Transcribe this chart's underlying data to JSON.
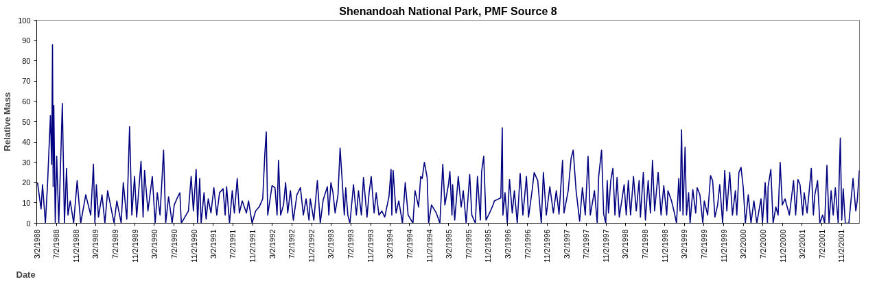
{
  "chart_data": {
    "type": "line",
    "title": "Shenandoah National Park, PMF Source 8",
    "xlabel": "Date",
    "ylabel": "Relative Mass",
    "color": "#000080",
    "x": [
      "1988-03-07",
      "1988-03-29",
      "1988-04-07",
      "1988-04-25",
      "1988-05-08",
      "1988-05-26",
      "1988-06-03",
      "1988-06-08",
      "1988-06-12",
      "1988-06-16",
      "1988-06-25",
      "1988-07-04",
      "1988-07-17",
      "1988-08-08",
      "1988-08-21",
      "1988-09-03",
      "1988-09-12",
      "1988-09-26",
      "1988-10-17",
      "1988-11-08",
      "1988-11-30",
      "1988-12-31",
      "1989-01-31",
      "1989-02-17",
      "1989-02-26",
      "1989-03-07",
      "1989-03-20",
      "1989-04-11",
      "1989-04-29",
      "1989-05-16",
      "1989-06-25",
      "1989-07-12",
      "1989-08-08",
      "1989-08-21",
      "1989-09-12",
      "1989-09-29",
      "1989-10-13",
      "1989-10-30",
      "1989-11-12",
      "1989-12-09",
      "1989-12-22",
      "1989-12-31",
      "1990-01-21",
      "1990-02-17",
      "1990-03-07",
      "1990-03-20",
      "1990-04-06",
      "1990-04-28",
      "1990-05-11",
      "1990-05-29",
      "1990-06-20",
      "1990-07-03",
      "1990-07-25",
      "1990-08-07",
      "1990-08-16",
      "1990-09-07",
      "1990-09-29",
      "1990-10-16",
      "1990-10-30",
      "1990-11-16",
      "1990-11-25",
      "1990-12-08",
      "1990-12-17",
      "1991-01-04",
      "1991-01-17",
      "1991-01-30",
      "1991-02-16",
      "1991-03-06",
      "1991-03-24",
      "1991-04-10",
      "1991-05-02",
      "1991-05-15",
      "1991-05-24",
      "1991-06-11",
      "1991-06-28",
      "1991-07-11",
      "1991-07-29",
      "1991-08-11",
      "1991-08-29",
      "1991-09-24",
      "1991-10-07",
      "1991-10-29",
      "1991-11-20",
      "1991-12-12",
      "1992-01-03",
      "1992-01-16",
      "1992-01-25",
      "1992-02-03",
      "1992-03-01",
      "1992-03-19",
      "1992-04-01",
      "1992-04-10",
      "1992-04-23",
      "1992-05-11",
      "1992-05-24",
      "1992-06-06",
      "1992-06-23",
      "1992-07-11",
      "1992-08-02",
      "1992-08-24",
      "1992-09-11",
      "1992-09-28",
      "1992-10-16",
      "1992-10-24",
      "1992-11-15",
      "1992-12-07",
      "1992-12-25",
      "1993-01-12",
      "1993-02-07",
      "1993-02-16",
      "1993-03-01",
      "1993-03-14",
      "1993-03-27",
      "1993-04-14",
      "1993-04-27",
      "1993-05-10",
      "1993-05-23",
      "1993-06-01",
      "1993-06-14",
      "1993-06-27",
      "1993-07-19",
      "1993-08-06",
      "1993-08-19",
      "1993-09-06",
      "1993-09-19",
      "1993-10-11",
      "1993-10-24",
      "1993-11-06",
      "1993-11-24",
      "1993-12-07",
      "1993-12-24",
      "1994-01-11",
      "1994-01-29",
      "1994-02-24",
      "1994-03-09",
      "1994-03-14",
      "1994-03-22",
      "1994-04-09",
      "1994-04-26",
      "1994-05-19",
      "1994-06-05",
      "1994-06-23",
      "1994-07-23",
      "1994-08-05",
      "1994-08-27",
      "1994-09-09",
      "1994-09-18",
      "1994-10-02",
      "1994-10-19",
      "1994-10-28",
      "1994-11-15",
      "1994-12-15",
      "1995-01-06",
      "1995-01-24",
      "1995-02-06",
      "1995-02-28",
      "1995-03-09",
      "1995-03-22",
      "1995-03-26",
      "1995-04-08",
      "1995-04-30",
      "1995-05-18",
      "1995-05-31",
      "1995-06-18",
      "1995-07-10",
      "1995-07-23",
      "1995-08-14",
      "1995-08-27",
      "1995-09-14",
      "1995-09-22",
      "1995-10-05",
      "1995-10-19",
      "1995-11-10",
      "1995-12-02",
      "1995-12-10",
      "1996-01-19",
      "1996-01-28",
      "1996-02-01",
      "1996-02-14",
      "1996-02-28",
      "1996-03-13",
      "1996-03-30",
      "1996-04-12",
      "1996-04-30",
      "1996-05-18",
      "1996-06-04",
      "1996-06-26",
      "1996-07-09",
      "1996-07-31",
      "1996-08-13",
      "1996-09-04",
      "1996-09-26",
      "1996-10-09",
      "1996-10-27",
      "1996-11-18",
      "1996-12-10",
      "1996-12-28",
      "1997-01-14",
      "1997-02-05",
      "1997-02-14",
      "1997-03-12",
      "1997-03-30",
      "1997-04-12",
      "1997-04-30",
      "1997-05-22",
      "1997-06-08",
      "1997-06-26",
      "1997-07-13",
      "1997-07-27",
      "1997-08-22",
      "1997-09-08",
      "1997-09-17",
      "1997-10-05",
      "1997-10-18",
      "1997-10-31",
      "1997-11-09",
      "1997-11-17",
      "1997-12-01",
      "1997-12-14",
      "1997-12-27",
      "1998-01-09",
      "1998-01-23",
      "1998-02-22",
      "1998-03-07",
      "1998-03-20",
      "1998-04-03",
      "1998-04-21",
      "1998-05-08",
      "1998-05-26",
      "1998-06-03",
      "1998-06-21",
      "1998-07-04",
      "1998-07-21",
      "1998-08-04",
      "1998-08-17",
      "1998-08-30",
      "1998-09-21",
      "1998-10-09",
      "1998-10-26",
      "1998-11-13",
      "1998-11-21",
      "1998-12-13",
      "1998-12-31",
      "1999-01-13",
      "1999-01-27",
      "1999-02-04",
      "1999-02-13",
      "1999-02-22",
      "1999-03-07",
      "1999-03-16",
      "1999-03-29",
      "1999-04-07",
      "1999-04-24",
      "1999-05-12",
      "1999-05-21",
      "1999-06-07",
      "1999-06-25",
      "1999-07-04",
      "1999-07-25",
      "1999-08-12",
      "1999-08-25",
      "1999-09-08",
      "1999-09-25",
      "1999-10-08",
      "1999-10-26",
      "1999-11-08",
      "1999-11-21",
      "1999-12-09",
      "1999-12-26",
      "2000-01-13",
      "2000-01-22",
      "2000-02-04",
      "2000-02-17",
      "2000-03-02",
      "2000-03-15",
      "2000-04-02",
      "2000-04-19",
      "2000-05-07",
      "2000-05-25",
      "2000-06-20",
      "2000-06-29",
      "2000-07-16",
      "2000-07-30",
      "2000-08-03",
      "2000-08-20",
      "2000-09-03",
      "2000-09-20",
      "2000-10-04",
      "2000-10-17",
      "2000-10-30",
      "2000-11-16",
      "2000-12-13",
      "2001-01-08",
      "2001-01-21",
      "2001-02-04",
      "2001-02-17",
      "2001-03-06",
      "2001-03-15",
      "2001-04-02",
      "2001-04-28",
      "2001-05-11",
      "2001-05-20",
      "2001-06-06",
      "2001-06-20",
      "2001-07-07",
      "2001-07-20",
      "2001-08-03",
      "2001-08-16",
      "2001-08-29",
      "2001-09-11",
      "2001-09-24",
      "2001-10-12",
      "2001-10-16",
      "2001-10-25",
      "2001-11-03",
      "2001-11-12",
      "2001-11-25",
      "2001-12-17",
      "2001-12-30",
      "2002-01-12",
      "2002-01-29",
      "2002-02-07",
      "2002-02-20"
    ],
    "values": [
      20,
      7,
      19,
      0,
      19,
      53,
      29,
      88,
      18,
      58,
      0,
      33,
      0,
      59,
      0,
      27,
      4,
      11,
      0,
      21,
      0,
      14,
      4,
      29,
      0,
      19,
      3,
      14,
      0,
      16,
      0,
      11,
      0,
      20,
      2,
      47.5,
      4,
      23,
      3,
      30.5,
      3,
      26,
      6,
      23,
      0,
      15,
      4,
      36,
      0,
      13,
      0,
      9,
      13,
      15,
      0,
      3,
      6,
      23,
      6,
      26.5,
      0,
      22,
      0,
      15,
      2,
      12,
      5,
      17.5,
      4,
      15,
      17,
      4,
      18,
      0,
      16,
      5,
      22,
      5,
      11,
      5,
      11,
      0,
      6,
      8,
      12,
      34,
      45,
      4,
      18.5,
      17.5,
      4,
      31,
      4,
      9,
      20,
      5,
      16,
      1.5,
      14,
      17.5,
      4,
      12,
      1.5,
      12,
      1.5,
      21,
      0,
      11.5,
      18,
      4,
      20,
      15,
      5,
      14,
      37,
      21,
      4,
      17.5,
      4,
      0,
      19,
      4,
      16,
      4,
      22.5,
      3,
      15,
      23,
      5,
      15,
      4,
      6,
      3,
      13,
      26.5,
      4,
      26,
      5,
      11,
      0,
      20,
      4,
      0,
      16,
      8,
      23,
      22,
      30,
      22.5,
      0,
      9,
      5,
      0,
      29,
      9,
      19,
      25.5,
      4,
      19,
      1.5,
      23,
      8,
      16,
      0,
      24,
      4,
      0,
      23,
      1.5,
      25.5,
      33,
      1.5,
      5,
      9,
      11,
      12.5,
      47,
      4,
      15,
      0,
      21.5,
      5,
      16,
      0,
      24.5,
      4,
      23,
      3,
      16,
      25,
      21,
      0,
      25,
      4,
      18,
      5,
      16,
      4.5,
      31,
      5,
      16,
      32,
      36,
      16,
      1,
      17.5,
      4,
      33,
      4,
      16,
      0,
      23,
      36,
      4.5,
      0,
      21,
      5,
      21,
      27,
      4,
      22.5,
      3,
      19,
      4,
      21,
      4,
      23,
      6,
      21,
      3,
      25,
      1.5,
      21,
      5,
      31,
      6,
      25,
      4,
      18.5,
      4,
      16,
      11,
      5,
      0,
      22,
      6,
      46,
      4,
      37.5,
      4,
      15,
      0,
      16.5,
      5,
      17.5,
      14,
      0,
      11,
      4,
      23.5,
      21,
      3,
      9,
      19,
      0,
      26,
      6,
      25,
      4,
      16,
      4,
      25,
      27.5,
      17.5,
      0,
      14,
      0,
      11,
      0,
      12,
      0,
      20,
      0,
      18,
      26.5,
      0,
      8,
      4,
      30,
      9,
      12,
      4,
      21,
      4,
      21.5,
      19,
      4,
      15,
      5,
      27,
      4,
      14,
      21,
      0,
      4,
      0,
      28.5,
      0,
      16,
      4,
      17.5,
      0,
      16,
      42,
      1.5,
      17,
      0,
      0,
      11,
      22,
      6,
      11,
      26
    ],
    "xlim": [
      "1988-03-02",
      "2002-02-21"
    ],
    "xticks": [
      {
        "value": "1988-03-02",
        "label": "3/2/1988"
      },
      {
        "value": "1988-07-02",
        "label": "7/2/1988"
      },
      {
        "value": "1988-11-02",
        "label": "11/2/1988"
      },
      {
        "value": "1989-03-02",
        "label": "3/2/1989"
      },
      {
        "value": "1989-07-02",
        "label": "7/2/1989"
      },
      {
        "value": "1989-11-02",
        "label": "11/2/1989"
      },
      {
        "value": "1990-03-02",
        "label": "3/2/1990"
      },
      {
        "value": "1990-07-02",
        "label": "7/2/1990"
      },
      {
        "value": "1990-11-02",
        "label": "11/2/1990"
      },
      {
        "value": "1991-03-02",
        "label": "3/2/1991"
      },
      {
        "value": "1991-07-02",
        "label": "7/2/1991"
      },
      {
        "value": "1991-11-02",
        "label": "11/2/1991"
      },
      {
        "value": "1992-03-02",
        "label": "3/2/1992"
      },
      {
        "value": "1992-07-02",
        "label": "7/2/1992"
      },
      {
        "value": "1992-11-02",
        "label": "11/2/1992"
      },
      {
        "value": "1993-03-02",
        "label": "3/2/1993"
      },
      {
        "value": "1993-07-02",
        "label": "7/2/1993"
      },
      {
        "value": "1993-11-02",
        "label": "11/2/1993"
      },
      {
        "value": "1994-03-02",
        "label": "3/2/1994"
      },
      {
        "value": "1994-07-02",
        "label": "7/2/1994"
      },
      {
        "value": "1994-11-02",
        "label": "11/2/1994"
      },
      {
        "value": "1995-03-02",
        "label": "3/2/1995"
      },
      {
        "value": "1995-07-02",
        "label": "7/2/1995"
      },
      {
        "value": "1995-11-02",
        "label": "11/2/1995"
      },
      {
        "value": "1996-03-02",
        "label": "3/2/1996"
      },
      {
        "value": "1996-07-02",
        "label": "7/2/1996"
      },
      {
        "value": "1996-11-02",
        "label": "11/2/1996"
      },
      {
        "value": "1997-03-02",
        "label": "3/2/1997"
      },
      {
        "value": "1997-07-02",
        "label": "7/2/1997"
      },
      {
        "value": "1997-11-02",
        "label": "11/2/1997"
      },
      {
        "value": "1998-03-02",
        "label": "3/2/1998"
      },
      {
        "value": "1998-07-02",
        "label": "7/2/1998"
      },
      {
        "value": "1998-11-02",
        "label": "11/2/1998"
      },
      {
        "value": "1999-03-02",
        "label": "3/2/1999"
      },
      {
        "value": "1999-07-02",
        "label": "7/2/1999"
      },
      {
        "value": "1999-11-02",
        "label": "11/2/1999"
      },
      {
        "value": "2000-03-02",
        "label": "3/2/2000"
      },
      {
        "value": "2000-07-02",
        "label": "7/2/2000"
      },
      {
        "value": "2000-11-02",
        "label": "11/2/2000"
      },
      {
        "value": "2001-03-02",
        "label": "3/2/2001"
      },
      {
        "value": "2001-07-02",
        "label": "7/2/2001"
      },
      {
        "value": "2001-11-02",
        "label": "11/2/2001"
      }
    ],
    "ylim": [
      0,
      100
    ],
    "yticks": [
      0,
      10,
      20,
      30,
      40,
      50,
      60,
      70,
      80,
      90,
      100
    ]
  }
}
